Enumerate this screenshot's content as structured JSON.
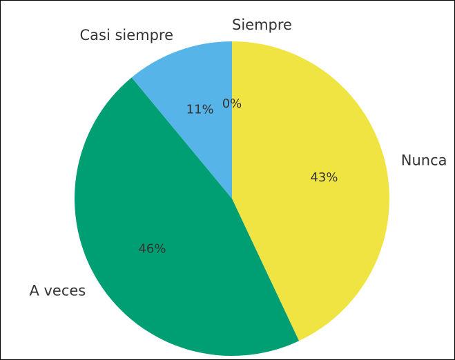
{
  "chart_data": {
    "type": "pie",
    "categories": [
      "Nunca",
      "A veces",
      "Casi siempre",
      "Siempre"
    ],
    "values": [
      43,
      46,
      11,
      0
    ],
    "value_labels": [
      "43%",
      "46%",
      "11%",
      "0%"
    ],
    "colors": [
      "#f0e442",
      "#009e73",
      "#56b4e9",
      "#e69f00"
    ]
  }
}
